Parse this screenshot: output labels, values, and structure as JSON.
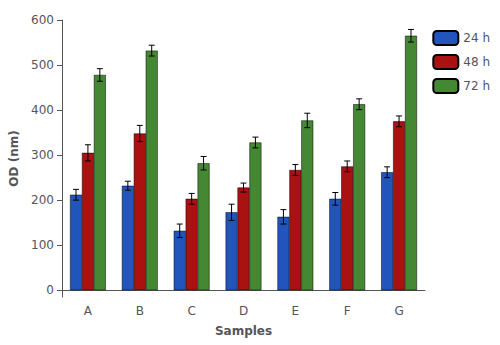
{
  "chart_data": {
    "type": "bar",
    "categories": [
      "A",
      "B",
      "C",
      "D",
      "E",
      "F",
      "G"
    ],
    "series": [
      {
        "name": "24 h",
        "color": "#2255bb",
        "values": [
          212,
          232,
          132,
          173,
          163,
          203,
          262
        ],
        "errors": [
          12,
          10,
          15,
          18,
          16,
          14,
          12
        ]
      },
      {
        "name": "48 h",
        "color": "#aa1111",
        "values": [
          305,
          348,
          203,
          228,
          267,
          275,
          375
        ],
        "errors": [
          18,
          18,
          12,
          10,
          12,
          12,
          12
        ]
      },
      {
        "name": "72 h",
        "color": "#448833",
        "values": [
          478,
          532,
          282,
          328,
          377,
          413,
          565
        ],
        "errors": [
          14,
          12,
          15,
          12,
          16,
          12,
          14
        ]
      }
    ],
    "xlabel": "Samples",
    "ylabel": "OD (nm)",
    "ylim": [
      -15,
      600
    ],
    "yticks": [
      0,
      100,
      200,
      300,
      400,
      500,
      600
    ],
    "grid": false,
    "legend": "upper right"
  }
}
